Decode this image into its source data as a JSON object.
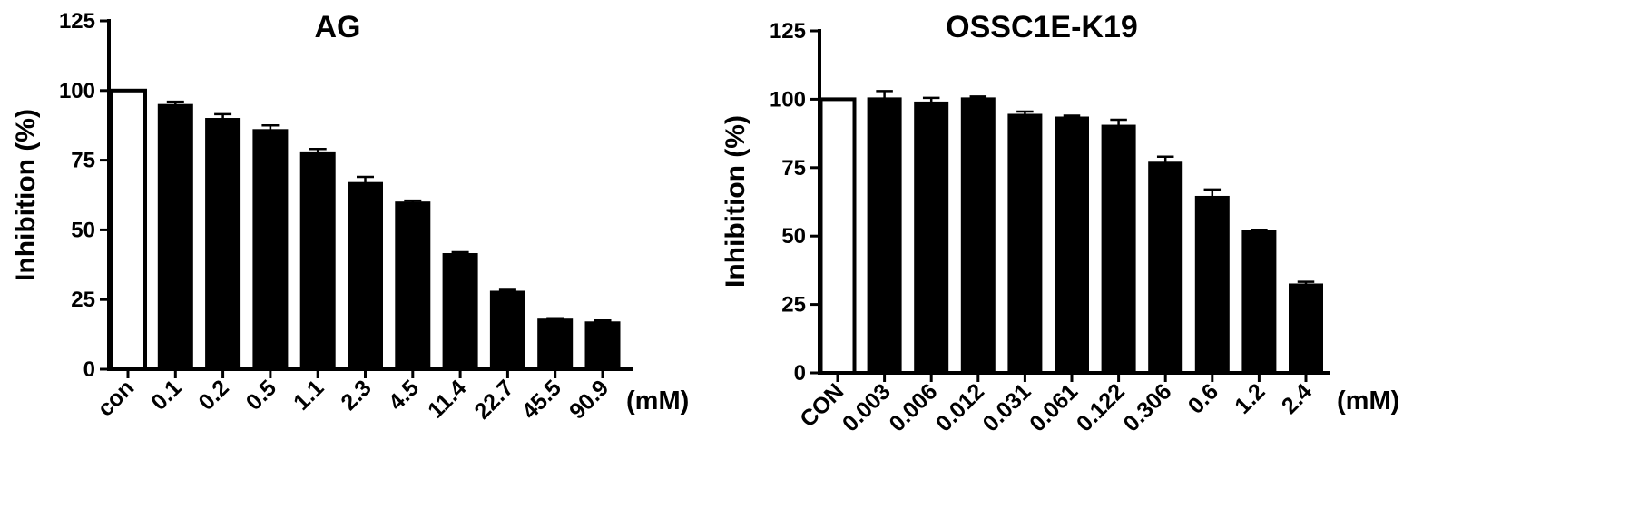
{
  "chart_data": [
    {
      "type": "bar",
      "title": "AG",
      "xlabel": "",
      "ylabel": "Inhibition (%)",
      "x_unit": "(mM)",
      "ylim": [
        0,
        125
      ],
      "yticks": [
        "0",
        "25",
        "50",
        "75",
        "100",
        "125"
      ],
      "categories": [
        "con",
        "0.1",
        "0.2",
        "0.5",
        "1.1",
        "2.3",
        "4.5",
        "11.4",
        "22.7",
        "45.5",
        "90.9"
      ],
      "values": [
        100,
        95,
        90,
        86,
        78,
        67,
        60,
        41.5,
        28,
        18,
        17
      ],
      "errors": [
        0,
        1,
        1.5,
        1.5,
        1,
        2,
        0.5,
        0.5,
        0.5,
        0.3,
        0.5
      ],
      "first_bar_style": "open",
      "grid": false,
      "legend": "none"
    },
    {
      "type": "bar",
      "title": "OSSC1E-K19",
      "xlabel": "",
      "ylabel": "Inhibition (%)",
      "x_unit": "(mM)",
      "ylim": [
        0,
        125
      ],
      "yticks": [
        "0",
        "25",
        "50",
        "75",
        "100",
        "125"
      ],
      "categories": [
        "CON",
        "0.003",
        "0.006",
        "0.012",
        "0.031",
        "0.061",
        "0.122",
        "0.306",
        "0.6",
        "1.2",
        "2.4"
      ],
      "values": [
        100,
        100.5,
        99,
        100.5,
        94.5,
        93.5,
        90.5,
        77,
        64.5,
        52,
        32.5
      ],
      "errors": [
        0,
        2.5,
        1.5,
        0.5,
        1,
        0.5,
        2,
        2,
        2.5,
        0.3,
        0.8
      ],
      "first_bar_style": "open",
      "grid": false,
      "legend": "none"
    }
  ]
}
